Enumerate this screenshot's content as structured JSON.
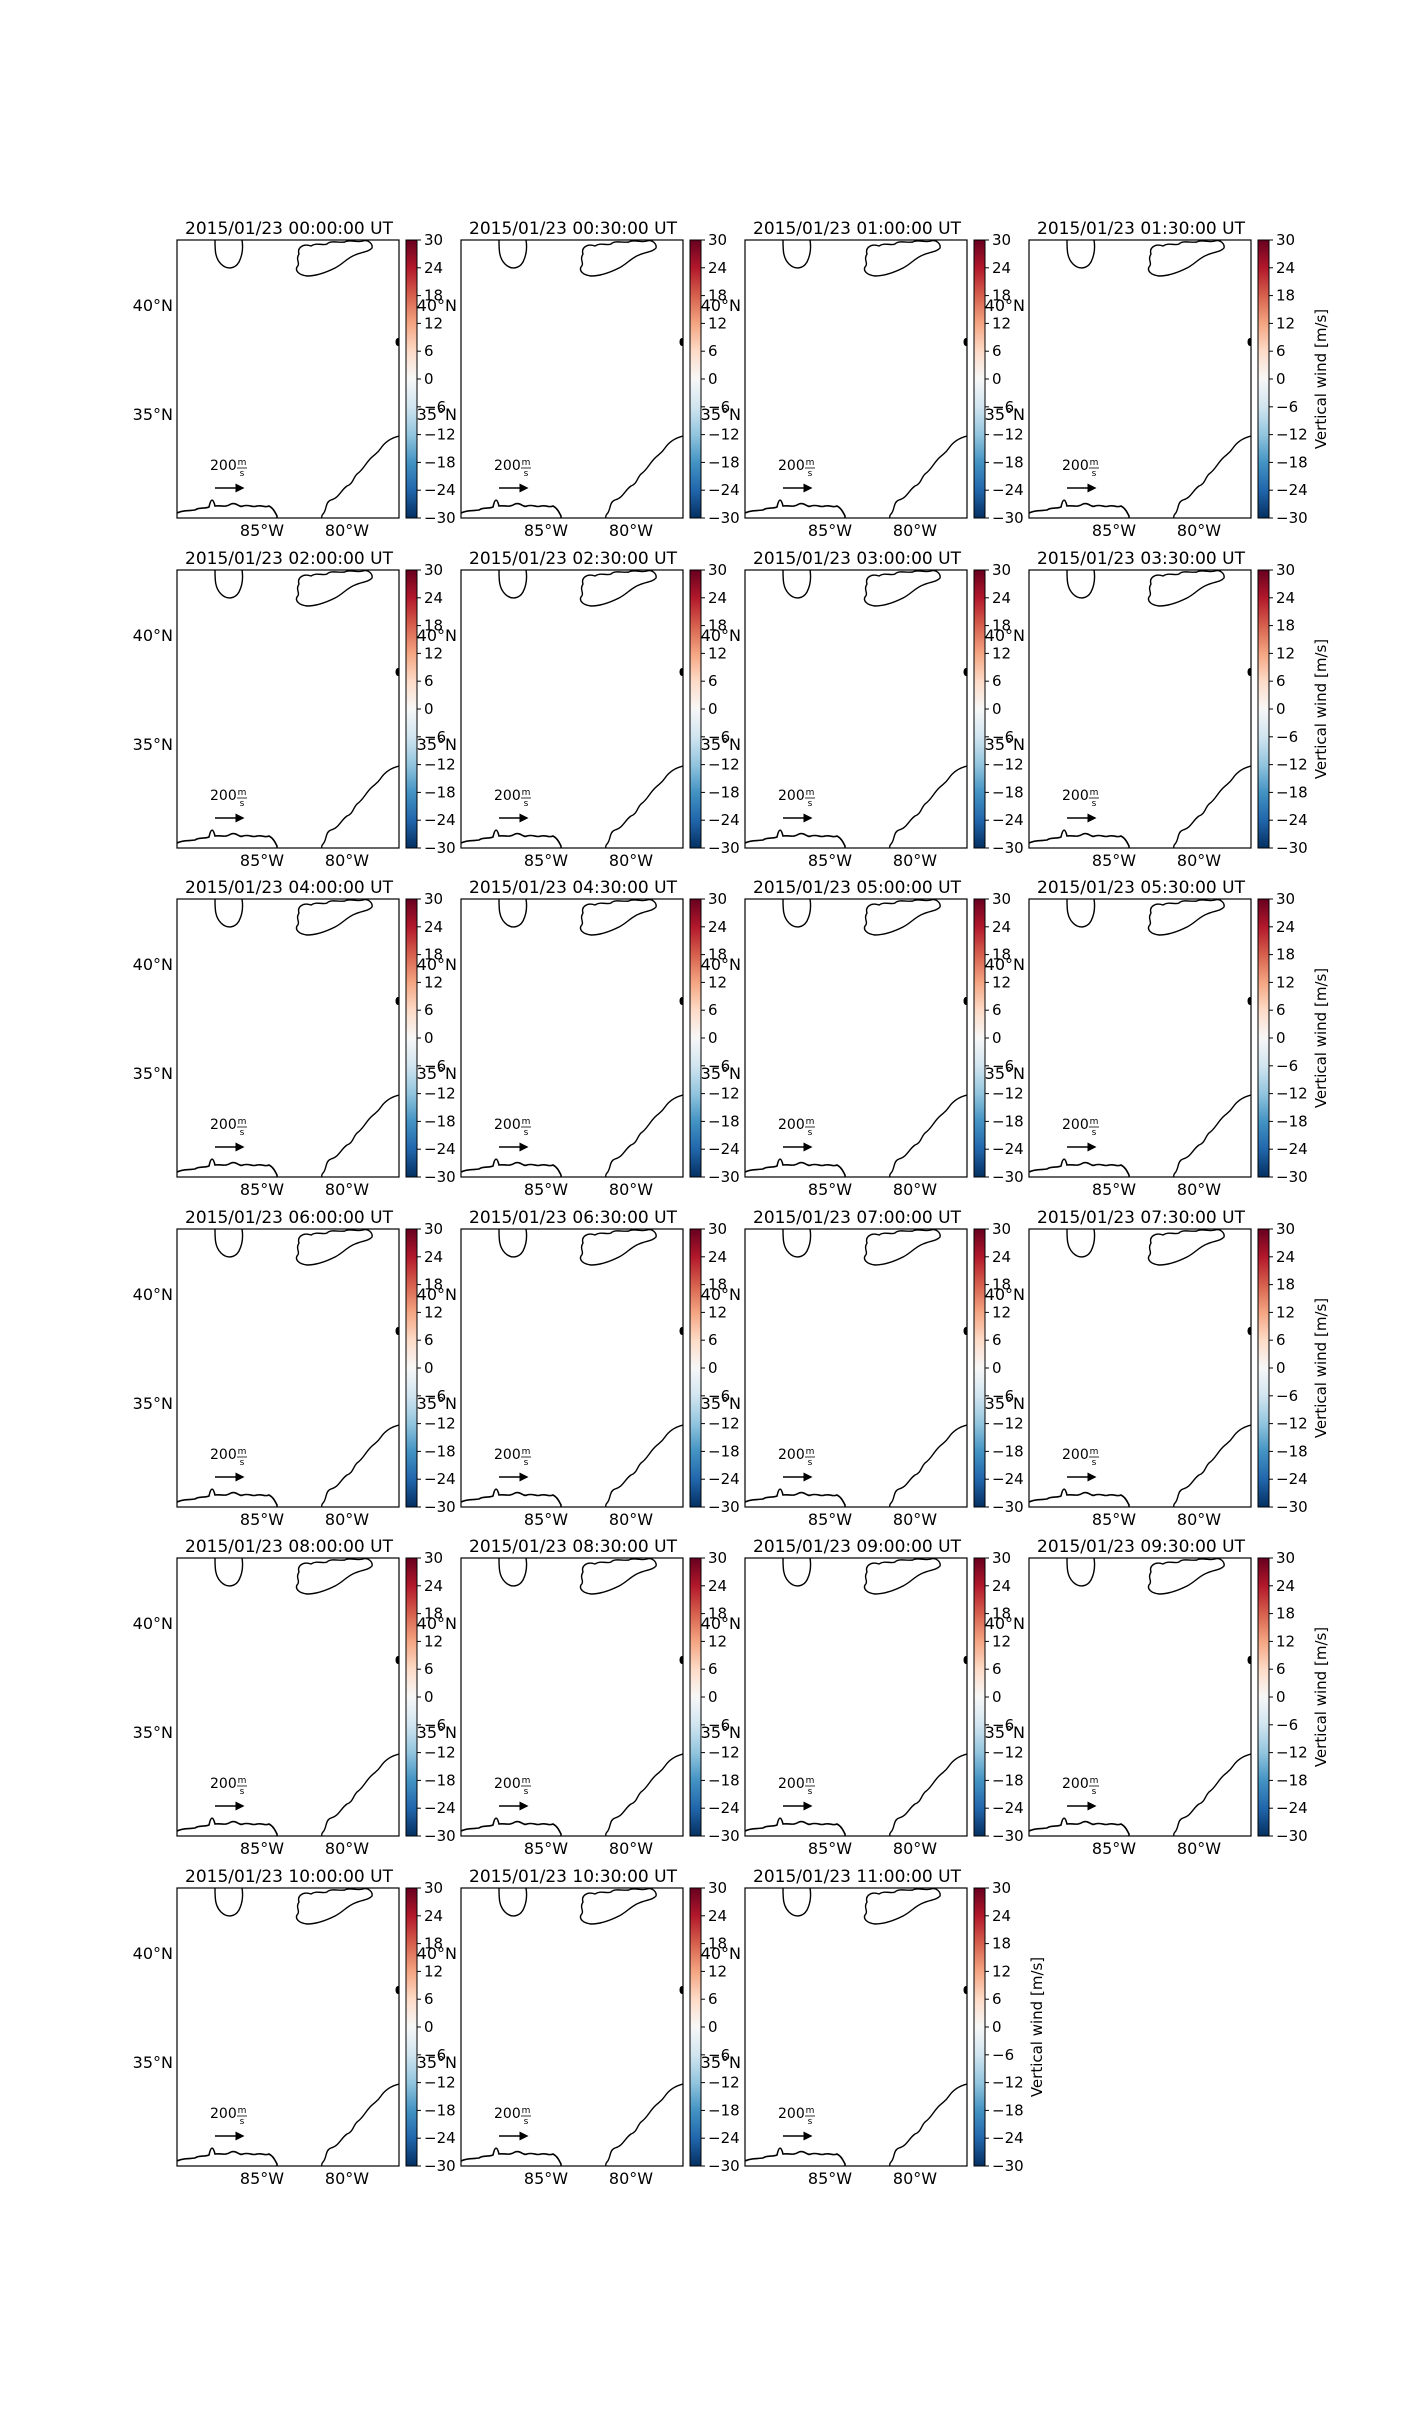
{
  "panels": [
    {
      "title": "2015/01/23 00:00:00 UT"
    },
    {
      "title": "2015/01/23 00:30:00 UT"
    },
    {
      "title": "2015/01/23 01:00:00 UT"
    },
    {
      "title": "2015/01/23 01:30:00 UT"
    },
    {
      "title": "2015/01/23 02:00:00 UT"
    },
    {
      "title": "2015/01/23 02:30:00 UT"
    },
    {
      "title": "2015/01/23 03:00:00 UT"
    },
    {
      "title": "2015/01/23 03:30:00 UT"
    },
    {
      "title": "2015/01/23 04:00:00 UT"
    },
    {
      "title": "2015/01/23 04:30:00 UT"
    },
    {
      "title": "2015/01/23 05:00:00 UT"
    },
    {
      "title": "2015/01/23 05:30:00 UT"
    },
    {
      "title": "2015/01/23 06:00:00 UT"
    },
    {
      "title": "2015/01/23 06:30:00 UT"
    },
    {
      "title": "2015/01/23 07:00:00 UT"
    },
    {
      "title": "2015/01/23 07:30:00 UT"
    },
    {
      "title": "2015/01/23 08:00:00 UT"
    },
    {
      "title": "2015/01/23 08:30:00 UT"
    },
    {
      "title": "2015/01/23 09:00:00 UT"
    },
    {
      "title": "2015/01/23 09:30:00 UT"
    },
    {
      "title": "2015/01/23 10:00:00 UT"
    },
    {
      "title": "2015/01/23 10:30:00 UT"
    },
    {
      "title": "2015/01/23 11:00:00 UT"
    }
  ],
  "map": {
    "lat_ticks": [
      "40°N",
      "35°N"
    ],
    "lon_ticks": [
      "85°W",
      "80°W"
    ]
  },
  "reference_arrow": {
    "label": "200",
    "unit_num": "m",
    "unit_den": "s"
  },
  "colorbar": {
    "label": "Vertical wind [m/s]",
    "ticks": [
      "30",
      "24",
      "18",
      "12",
      "6",
      "0",
      "−6",
      "−12",
      "−18",
      "−24",
      "−30"
    ],
    "colors": [
      "#67001f",
      "#b2182b",
      "#d6604d",
      "#f4a582",
      "#fddbc7",
      "#f7f7f7",
      "#d1e5f0",
      "#92c5de",
      "#4393c3",
      "#2166ac",
      "#053061"
    ]
  }
}
